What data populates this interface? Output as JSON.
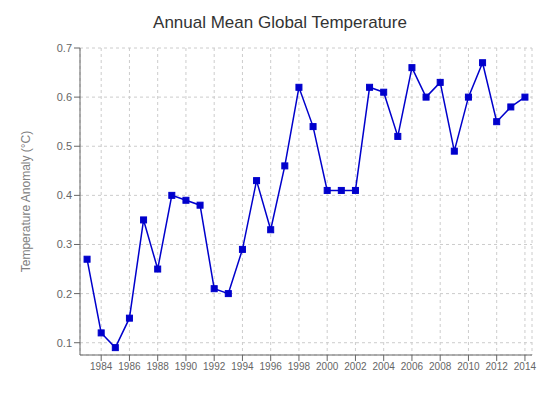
{
  "chart_data": {
    "type": "line",
    "title": "Annual Mean Global Temperature",
    "ylabel": "Temperature Anomaly (°C)",
    "x": [
      1983,
      1984,
      1985,
      1986,
      1987,
      1988,
      1989,
      1990,
      1991,
      1992,
      1993,
      1994,
      1995,
      1996,
      1997,
      1998,
      1999,
      2000,
      2001,
      2002,
      2003,
      2004,
      2005,
      2006,
      2007,
      2008,
      2009,
      2010,
      2011,
      2012,
      2013,
      2014
    ],
    "values": [
      0.27,
      0.12,
      0.09,
      0.15,
      0.35,
      0.25,
      0.4,
      0.39,
      0.38,
      0.21,
      0.2,
      0.29,
      0.43,
      0.33,
      0.46,
      0.62,
      0.54,
      0.41,
      0.41,
      0.41,
      0.62,
      0.61,
      0.52,
      0.66,
      0.6,
      0.63,
      0.49,
      0.6,
      0.67,
      0.55,
      0.58,
      0.6
    ],
    "color": "#0000cc",
    "marker": "square",
    "xlim": [
      1982.5,
      2014.5
    ],
    "ylim": [
      0.075,
      0.7
    ],
    "xticks": [
      1984,
      1986,
      1988,
      1990,
      1992,
      1994,
      1996,
      1998,
      2000,
      2002,
      2004,
      2006,
      2008,
      2010,
      2012,
      2014
    ],
    "yticks": [
      0.1,
      0.2,
      0.3,
      0.4,
      0.5,
      0.6,
      0.7
    ],
    "grid": true
  }
}
